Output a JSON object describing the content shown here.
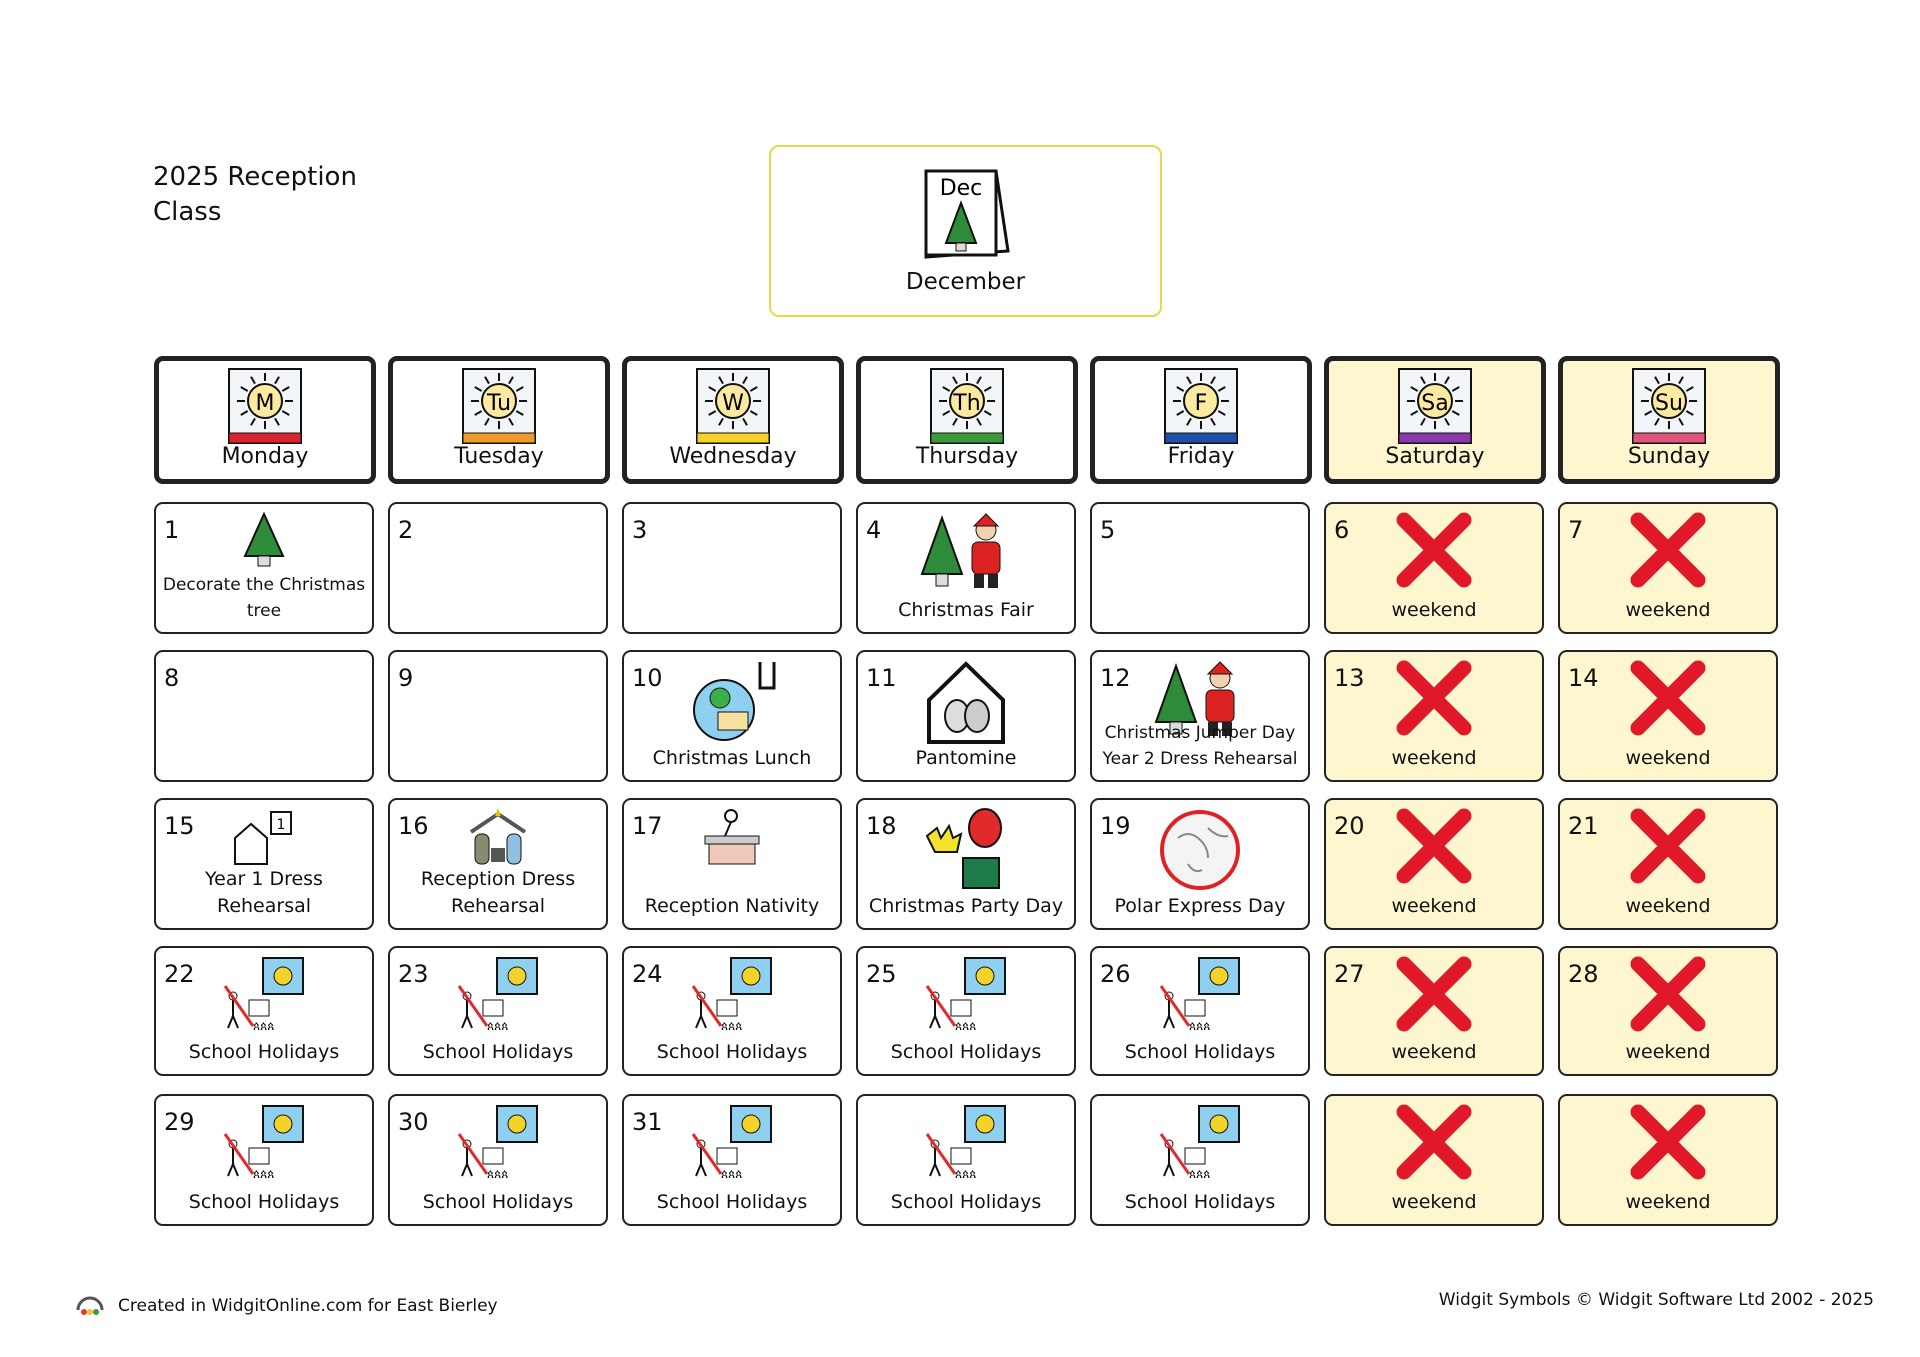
{
  "title": "2025 Reception Class",
  "month": {
    "abbr": "Dec",
    "label": "December"
  },
  "days": [
    {
      "abbr": "M",
      "label": "Monday",
      "color": "#d9262e",
      "weekend": false
    },
    {
      "abbr": "Tu",
      "label": "Tuesday",
      "color": "#ee9a2a",
      "weekend": false
    },
    {
      "abbr": "W",
      "label": "Wednesday",
      "color": "#f3d22a",
      "weekend": false
    },
    {
      "abbr": "Th",
      "label": "Thursday",
      "color": "#3a9a3a",
      "weekend": false
    },
    {
      "abbr": "F",
      "label": "Friday",
      "color": "#1f4fa8",
      "weekend": false
    },
    {
      "abbr": "Sa",
      "label": "Saturday",
      "color": "#8a3aa8",
      "weekend": true
    },
    {
      "abbr": "Su",
      "label": "Sunday",
      "color": "#e0557a",
      "weekend": true
    }
  ],
  "weeks": [
    [
      {
        "n": "1",
        "t": "Decorate the Christmas tree",
        "i": "tree"
      },
      {
        "n": "2",
        "t": "",
        "i": ""
      },
      {
        "n": "3",
        "t": "",
        "i": ""
      },
      {
        "n": "4",
        "t": "Christmas Fair",
        "i": "tree-santa"
      },
      {
        "n": "5",
        "t": "",
        "i": ""
      },
      {
        "n": "6",
        "t": "weekend",
        "i": "x"
      },
      {
        "n": "7",
        "t": "weekend",
        "i": "x"
      }
    ],
    [
      {
        "n": "8",
        "t": "",
        "i": ""
      },
      {
        "n": "9",
        "t": "",
        "i": ""
      },
      {
        "n": "10",
        "t": "Christmas Lunch",
        "i": "lunch"
      },
      {
        "n": "11",
        "t": "Pantomine",
        "i": "theatre"
      },
      {
        "n": "12",
        "t": "Christmas Jumper Day Year 2 Dress Rehearsal",
        "i": "tree-santa"
      },
      {
        "n": "13",
        "t": "weekend",
        "i": "x"
      },
      {
        "n": "14",
        "t": "weekend",
        "i": "x"
      }
    ],
    [
      {
        "n": "15",
        "t": "Year 1 Dress Rehearsal",
        "i": "rehearsal"
      },
      {
        "n": "16",
        "t": "Reception Dress Rehearsal",
        "i": "nativity"
      },
      {
        "n": "17",
        "t": "Reception Nativity",
        "i": "desk"
      },
      {
        "n": "18",
        "t": "Christmas Party Day",
        "i": "party"
      },
      {
        "n": "19",
        "t": "Polar Express Day",
        "i": "globe"
      },
      {
        "n": "20",
        "t": "weekend",
        "i": "x"
      },
      {
        "n": "21",
        "t": "weekend",
        "i": "x"
      }
    ],
    [
      {
        "n": "22",
        "t": "School Holidays",
        "i": "holiday"
      },
      {
        "n": "23",
        "t": "School Holidays",
        "i": "holiday"
      },
      {
        "n": "24",
        "t": "School Holidays",
        "i": "holiday"
      },
      {
        "n": "25",
        "t": "School Holidays",
        "i": "holiday"
      },
      {
        "n": "26",
        "t": "School Holidays",
        "i": "holiday"
      },
      {
        "n": "27",
        "t": "weekend",
        "i": "x"
      },
      {
        "n": "28",
        "t": "weekend",
        "i": "x"
      }
    ],
    [
      {
        "n": "29",
        "t": "School Holidays",
        "i": "holiday"
      },
      {
        "n": "30",
        "t": "School Holidays",
        "i": "holiday"
      },
      {
        "n": "31",
        "t": "School Holidays",
        "i": "holiday"
      },
      {
        "n": "",
        "t": "School Holidays",
        "i": "holiday"
      },
      {
        "n": "",
        "t": "School Holidays",
        "i": "holiday"
      },
      {
        "n": "",
        "t": "weekend",
        "i": "x"
      },
      {
        "n": "",
        "t": "weekend",
        "i": "x"
      }
    ]
  ],
  "footer": {
    "left": "Created in WidgitOnline.com for East Bierley",
    "right": "Widgit Symbols © Widgit Software Ltd 2002 - 2025"
  }
}
